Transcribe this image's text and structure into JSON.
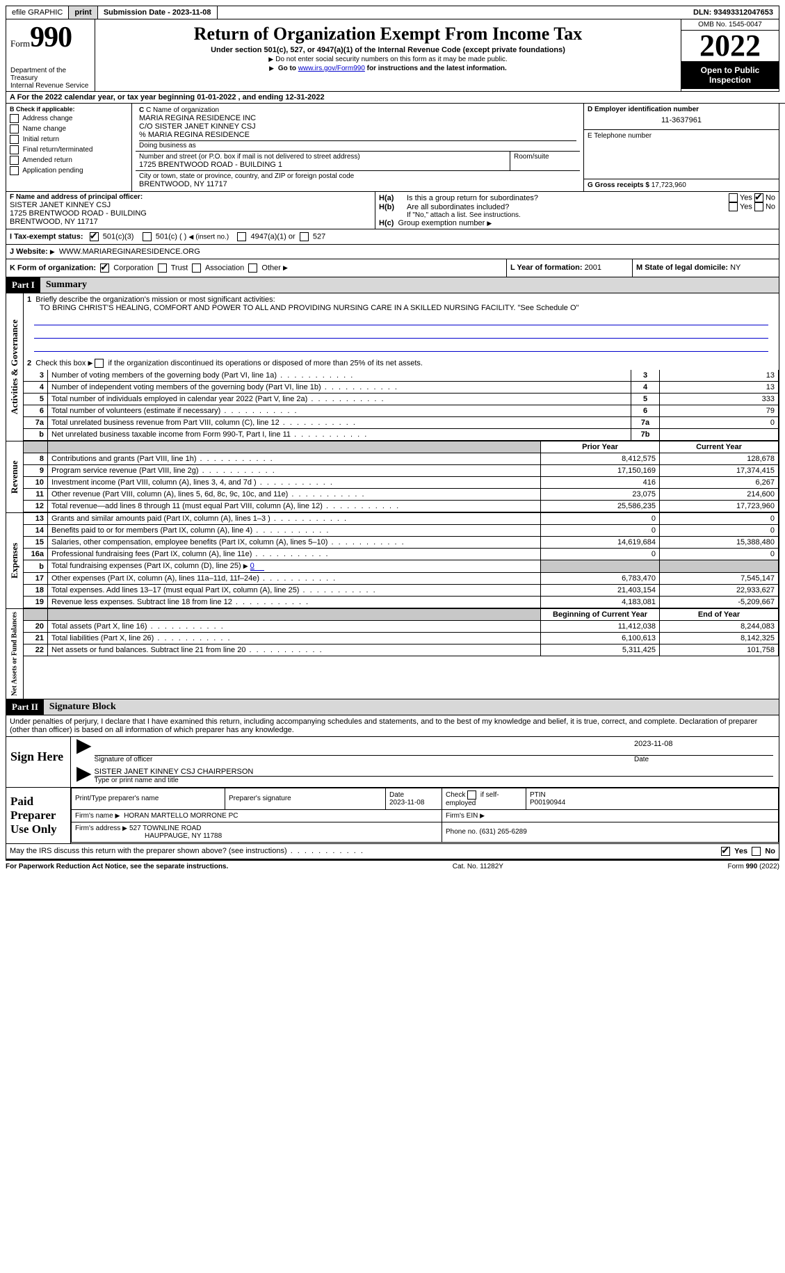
{
  "topbar": {
    "efile": "efile GRAPHIC",
    "print": "print",
    "subdate_label": "Submission Date - ",
    "subdate": "2023-11-08",
    "dln_label": "DLN: ",
    "dln": "93493312047653"
  },
  "header": {
    "form_word": "Form",
    "form_num": "990",
    "dept": "Department of the Treasury",
    "irs": "Internal Revenue Service",
    "title": "Return of Organization Exempt From Income Tax",
    "sub": "Under section 501(c), 527, or 4947(a)(1) of the Internal Revenue Code (except private foundations)",
    "note1": "Do not enter social security numbers on this form as it may be made public.",
    "note2_pre": "Go to ",
    "note2_link": "www.irs.gov/Form990",
    "note2_post": " for instructions and the latest information.",
    "omb": "OMB No. 1545-0047",
    "year": "2022",
    "open": "Open to Public Inspection"
  },
  "A": {
    "text": "A For the 2022 calendar year, or tax year beginning 01-01-2022    , and ending 12-31-2022"
  },
  "B": {
    "label": "B Check if applicable:",
    "items": [
      "Address change",
      "Name change",
      "Initial return",
      "Final return/terminated",
      "Amended return",
      "Application pending"
    ]
  },
  "C": {
    "name_label": "C Name of organization",
    "name1": "MARIA REGINA RESIDENCE INC",
    "name2": "C/O SISTER JANET KINNEY CSJ",
    "name3": "% MARIA REGINA RESIDENCE",
    "dba_label": "Doing business as",
    "street_label": "Number and street (or P.O. box if mail is not delivered to street address)",
    "room_label": "Room/suite",
    "street": "1725 BRENTWOOD ROAD - BUILDING 1",
    "city_label": "City or town, state or province, country, and ZIP or foreign postal code",
    "city": "BRENTWOOD, NY  11717"
  },
  "D": {
    "label": "D Employer identification number",
    "value": "11-3637961"
  },
  "E": {
    "label": "E Telephone number",
    "value": ""
  },
  "G": {
    "label": "G Gross receipts $ ",
    "value": "17,723,960"
  },
  "F": {
    "label": "F  Name and address of principal officer:",
    "name": "SISTER JANET KINNEY CSJ",
    "addr1": "1725 BRENTWOOD ROAD - BUILDING",
    "addr2": "BRENTWOOD, NY  11717"
  },
  "H": {
    "a": "Is this a group return for subordinates?",
    "b": "Are all subordinates included?",
    "note": "If \"No,\" attach a list. See instructions.",
    "c": "Group exemption number"
  },
  "I": {
    "label": "I   Tax-exempt status:",
    "opts": [
      "501(c)(3)",
      "501(c) (  )",
      "(insert no.)",
      "4947(a)(1) or",
      "527"
    ]
  },
  "J": {
    "label": "J   Website:",
    "value": "WWW.MARIAREGINARESIDENCE.ORG"
  },
  "K": {
    "label": "K Form of organization:",
    "opts": [
      "Corporation",
      "Trust",
      "Association",
      "Other"
    ]
  },
  "L": {
    "label": "L Year of formation: ",
    "value": "2001"
  },
  "M": {
    "label": "M State of legal domicile: ",
    "value": "NY"
  },
  "part1": {
    "hdr": "Part I",
    "title": "Summary"
  },
  "summary": {
    "l1_label": "Briefly describe the organization's mission or most significant activities:",
    "l1_text": "TO BRING CHRIST'S HEALING, COMFORT AND POWER TO ALL AND PROVIDING NURSING CARE IN A SKILLED NURSING FACILITY. \"See Schedule O\"",
    "l2": "Check this box",
    "l2b": "if the organization discontinued its operations or disposed of more than 25% of its net assets.",
    "rows_gov": [
      {
        "n": "3",
        "desc": "Number of voting members of the governing body (Part VI, line 1a)",
        "box": "3",
        "val": "13"
      },
      {
        "n": "4",
        "desc": "Number of independent voting members of the governing body (Part VI, line 1b)",
        "box": "4",
        "val": "13"
      },
      {
        "n": "5",
        "desc": "Total number of individuals employed in calendar year 2022 (Part V, line 2a)",
        "box": "5",
        "val": "333"
      },
      {
        "n": "6",
        "desc": "Total number of volunteers (estimate if necessary)",
        "box": "6",
        "val": "79"
      },
      {
        "n": "7a",
        "desc": "Total unrelated business revenue from Part VIII, column (C), line 12",
        "box": "7a",
        "val": "0"
      },
      {
        "n": "b",
        "desc": "Net unrelated business taxable income from Form 990-T, Part I, line 11",
        "box": "7b",
        "val": ""
      }
    ],
    "col_prior": "Prior Year",
    "col_curr": "Current Year",
    "rows_rev": [
      {
        "n": "8",
        "desc": "Contributions and grants (Part VIII, line 1h)",
        "prior": "8,412,575",
        "curr": "128,678"
      },
      {
        "n": "9",
        "desc": "Program service revenue (Part VIII, line 2g)",
        "prior": "17,150,169",
        "curr": "17,374,415"
      },
      {
        "n": "10",
        "desc": "Investment income (Part VIII, column (A), lines 3, 4, and 7d )",
        "prior": "416",
        "curr": "6,267"
      },
      {
        "n": "11",
        "desc": "Other revenue (Part VIII, column (A), lines 5, 6d, 8c, 9c, 10c, and 11e)",
        "prior": "23,075",
        "curr": "214,600"
      },
      {
        "n": "12",
        "desc": "Total revenue—add lines 8 through 11 (must equal Part VIII, column (A), line 12)",
        "prior": "25,586,235",
        "curr": "17,723,960"
      }
    ],
    "rows_exp": [
      {
        "n": "13",
        "desc": "Grants and similar amounts paid (Part IX, column (A), lines 1–3 )",
        "prior": "0",
        "curr": "0"
      },
      {
        "n": "14",
        "desc": "Benefits paid to or for members (Part IX, column (A), line 4)",
        "prior": "0",
        "curr": "0"
      },
      {
        "n": "15",
        "desc": "Salaries, other compensation, employee benefits (Part IX, column (A), lines 5–10)",
        "prior": "14,619,684",
        "curr": "15,388,480"
      },
      {
        "n": "16a",
        "desc": "Professional fundraising fees (Part IX, column (A), line 11e)",
        "prior": "0",
        "curr": "0"
      },
      {
        "n": "b",
        "desc": "Total fundraising expenses (Part IX, column (D), line 25)",
        "prior": "SHADE",
        "curr": "SHADE",
        "inlineval": "0"
      },
      {
        "n": "17",
        "desc": "Other expenses (Part IX, column (A), lines 11a–11d, 11f–24e)",
        "prior": "6,783,470",
        "curr": "7,545,147"
      },
      {
        "n": "18",
        "desc": "Total expenses. Add lines 13–17 (must equal Part IX, column (A), line 25)",
        "prior": "21,403,154",
        "curr": "22,933,627"
      },
      {
        "n": "19",
        "desc": "Revenue less expenses. Subtract line 18 from line 12",
        "prior": "4,183,081",
        "curr": "-5,209,667"
      }
    ],
    "col_begin": "Beginning of Current Year",
    "col_end": "End of Year",
    "rows_net": [
      {
        "n": "20",
        "desc": "Total assets (Part X, line 16)",
        "prior": "11,412,038",
        "curr": "8,244,083"
      },
      {
        "n": "21",
        "desc": "Total liabilities (Part X, line 26)",
        "prior": "6,100,613",
        "curr": "8,142,325"
      },
      {
        "n": "22",
        "desc": "Net assets or fund balances. Subtract line 21 from line 20",
        "prior": "5,311,425",
        "curr": "101,758"
      }
    ],
    "side_gov": "Activities & Governance",
    "side_rev": "Revenue",
    "side_exp": "Expenses",
    "side_net": "Net Assets or Fund Balances"
  },
  "part2": {
    "hdr": "Part II",
    "title": "Signature Block"
  },
  "sig": {
    "decl": "Under penalties of perjury, I declare that I have examined this return, including accompanying schedules and statements, and to the best of my knowledge and belief, it is true, correct, and complete. Declaration of preparer (other than officer) is based on all information of which preparer has any knowledge.",
    "sign_here": "Sign Here",
    "sig_officer": "Signature of officer",
    "sig_date": "2023-11-08",
    "date_label": "Date",
    "name_title": "SISTER JANET KINNEY CSJ CHAIRPERSON",
    "type_label": "Type or print name and title",
    "paid": "Paid Preparer Use Only",
    "prep_name_label": "Print/Type preparer's name",
    "prep_sig_label": "Preparer's signature",
    "prep_date_label": "Date",
    "prep_date": "2023-11-08",
    "check_self": "Check        if self-employed",
    "ptin_label": "PTIN",
    "ptin": "P00190944",
    "firm_name_label": "Firm's name    ",
    "firm_name": "HORAN MARTELLO MORRONE PC",
    "firm_ein_label": "Firm's EIN",
    "firm_addr_label": "Firm's address",
    "firm_addr1": "527 TOWNLINE ROAD",
    "firm_addr2": "HAUPPAUGE, NY  11788",
    "phone_label": "Phone no. ",
    "phone": "(631) 265-6289",
    "may_irs": "May the IRS discuss this return with the preparer shown above? (see instructions)"
  },
  "footer": {
    "pra": "For Paperwork Reduction Act Notice, see the separate instructions.",
    "cat": "Cat. No. 11282Y",
    "form": "Form 990 (2022)"
  },
  "yn": {
    "yes": "Yes",
    "no": "No"
  }
}
